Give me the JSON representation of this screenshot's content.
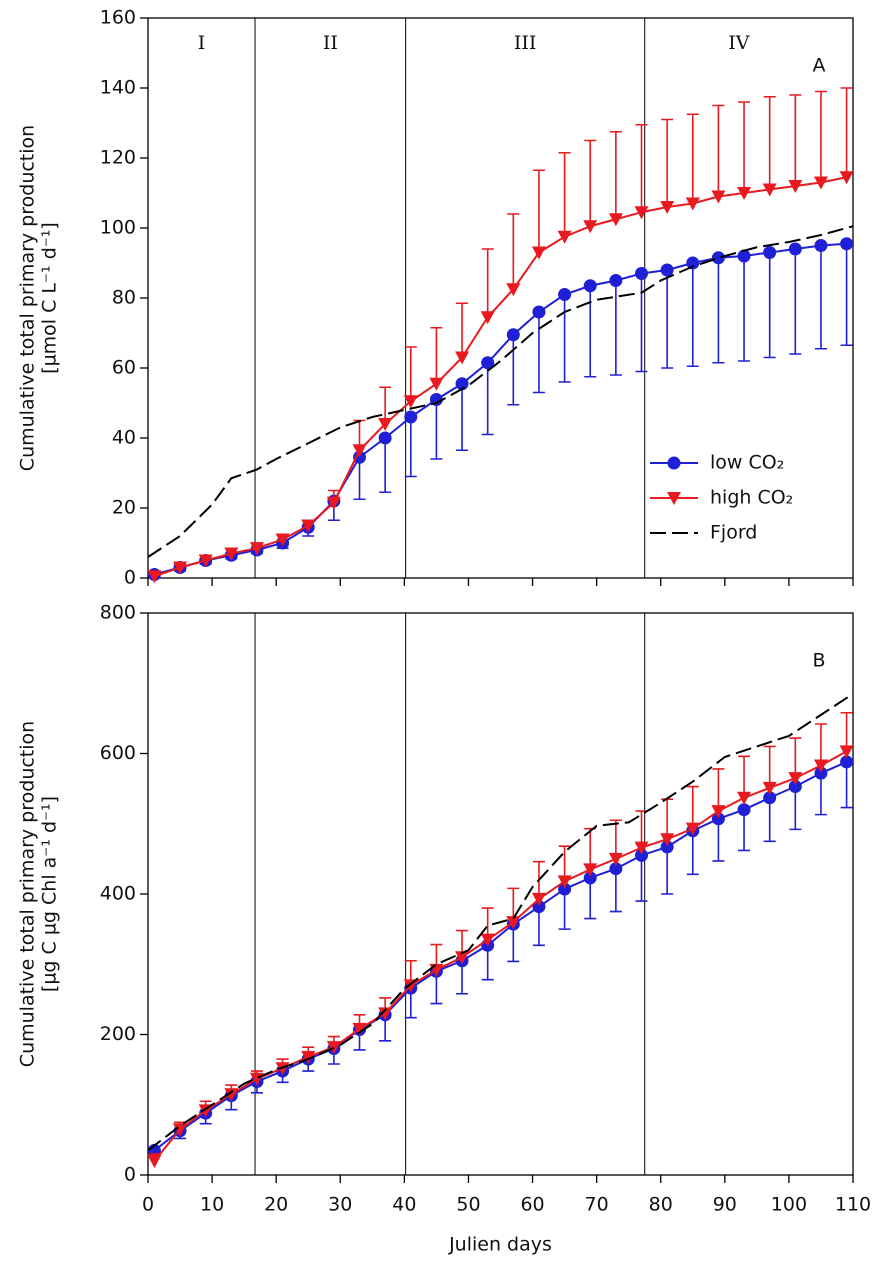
{
  "chart_data": [
    {
      "type": "line",
      "panel_label": "A",
      "ylabel": [
        "Cumulative total primary production",
        "[µmol C L⁻¹ d⁻¹]"
      ],
      "x": [
        1,
        5,
        9,
        13,
        17,
        21,
        25,
        29,
        33,
        37,
        41,
        45,
        49,
        53,
        57,
        61,
        65,
        69,
        73,
        77,
        81,
        85,
        89,
        93,
        97,
        101,
        105,
        109
      ],
      "xlim": [
        0,
        110
      ],
      "xticks": [
        0,
        10,
        20,
        30,
        40,
        50,
        60,
        70,
        80,
        90,
        100,
        110
      ],
      "xticklabels": false,
      "ylim": [
        0,
        160
      ],
      "yticks": [
        0,
        20,
        40,
        60,
        80,
        100,
        120,
        140,
        160
      ],
      "vlines": [
        16.7,
        40.2,
        77.5
      ],
      "phase_labels": [
        "I",
        "II",
        "III",
        "IV"
      ],
      "legend": "right",
      "series": [
        {
          "name": "low CO₂",
          "color": "#1f1fd6",
          "marker": "circle",
          "error_direction": "down",
          "values": [
            1,
            3,
            5,
            6.5,
            8,
            10,
            14.5,
            22,
            34.5,
            40,
            46,
            51,
            55.5,
            61.5,
            69.5,
            76,
            81,
            83.5,
            85,
            87,
            88,
            90,
            91.5,
            92,
            93,
            94,
            95,
            95.5
          ],
          "errors": [
            0.5,
            1,
            1,
            1,
            1,
            1.5,
            2.5,
            5.5,
            12,
            15.5,
            17,
            17,
            19,
            20.5,
            20,
            23,
            25,
            26,
            27,
            28,
            28,
            29.5,
            30,
            30,
            30,
            30,
            29.5,
            29
          ]
        },
        {
          "name": "high CO₂",
          "color": "#e8191f",
          "marker": "triangle-down",
          "error_direction": "up",
          "values": [
            0.5,
            3,
            5,
            7,
            8.5,
            11,
            15,
            21.5,
            36.5,
            44,
            50.5,
            55.5,
            63,
            74.5,
            82.5,
            93,
            97.5,
            100.5,
            102.5,
            104.5,
            106,
            107,
            109,
            110,
            111,
            112,
            113,
            114.5
          ],
          "errors": [
            1,
            1,
            1.5,
            1.5,
            1.5,
            1.5,
            1.5,
            3.5,
            8.5,
            10.5,
            15.5,
            16,
            15.5,
            19.5,
            21.5,
            23.5,
            24,
            24.5,
            25,
            25,
            25,
            25.5,
            26,
            26,
            26.5,
            26,
            26,
            25.5
          ]
        },
        {
          "name": "Fjord",
          "color": "#000000",
          "marker": "none",
          "dash": true,
          "x": [
            0,
            5,
            10,
            13,
            17,
            20,
            25,
            30,
            35,
            40,
            45,
            50,
            55,
            60,
            65,
            70,
            77,
            80,
            85,
            90,
            95,
            100,
            105,
            110
          ],
          "values": [
            6,
            12,
            21,
            28.5,
            31,
            34,
            38.5,
            43,
            46,
            48,
            50,
            55,
            62,
            70,
            76,
            79.5,
            81.5,
            85,
            89,
            92,
            94.5,
            96,
            98,
            100.5
          ]
        }
      ]
    },
    {
      "type": "line",
      "panel_label": "B",
      "ylabel": [
        "Cumulative total primary production",
        "[µg C µg Chl a⁻¹ d⁻¹]"
      ],
      "xlabel": "Julien days",
      "x": [
        1,
        5,
        9,
        13,
        17,
        21,
        25,
        29,
        33,
        37,
        41,
        45,
        49,
        53,
        57,
        61,
        65,
        69,
        73,
        77,
        81,
        85,
        89,
        93,
        97,
        101,
        105,
        109
      ],
      "xlim": [
        0,
        110
      ],
      "xticks": [
        0,
        10,
        20,
        30,
        40,
        50,
        60,
        70,
        80,
        90,
        100,
        110
      ],
      "xticklabels": true,
      "ylim": [
        0,
        800
      ],
      "yticks": [
        0,
        200,
        400,
        600,
        800
      ],
      "vlines": [
        16.7,
        40.2,
        77.5
      ],
      "series": [
        {
          "color": "#1f1fd6",
          "marker": "circle",
          "error_direction": "down",
          "values": [
            35,
            63,
            88,
            113,
            133,
            148,
            165,
            180,
            207,
            228,
            266,
            290,
            305,
            327,
            357,
            382,
            407,
            423,
            436,
            455,
            467,
            490,
            507,
            520,
            537,
            553,
            572,
            588
          ],
          "errors": [
            7,
            11,
            15,
            20,
            16,
            16,
            17,
            22,
            29,
            37,
            42,
            46,
            47,
            49,
            53,
            55,
            57,
            58,
            61,
            65,
            67,
            62,
            60,
            58,
            62,
            61,
            59,
            65
          ]
        },
        {
          "color": "#e8191f",
          "marker": "triangle-down",
          "error_direction": "up",
          "values": [
            20,
            65,
            92,
            115,
            137,
            152,
            168,
            182,
            208,
            230,
            270,
            292,
            310,
            335,
            360,
            393,
            418,
            435,
            450,
            466,
            478,
            493,
            518,
            537,
            551,
            565,
            583,
            603
          ],
          "errors": [
            10,
            10,
            13,
            13,
            11,
            13,
            14,
            15,
            20,
            22,
            35,
            36,
            38,
            45,
            48,
            53,
            50,
            58,
            55,
            52,
            57,
            60,
            60,
            59,
            59,
            57,
            59,
            55
          ]
        },
        {
          "color": "#000000",
          "marker": "none",
          "dash": true,
          "x": [
            0,
            5,
            10,
            15,
            20,
            25,
            30,
            35,
            40,
            45,
            50,
            53,
            57,
            60,
            65,
            70,
            75,
            77,
            80,
            85,
            90,
            95,
            100,
            105,
            110
          ],
          "values": [
            35,
            70,
            100,
            130,
            150,
            165,
            185,
            215,
            265,
            300,
            320,
            355,
            365,
            410,
            460,
            497,
            502,
            513,
            530,
            560,
            595,
            610,
            625,
            655,
            685
          ]
        }
      ]
    }
  ]
}
